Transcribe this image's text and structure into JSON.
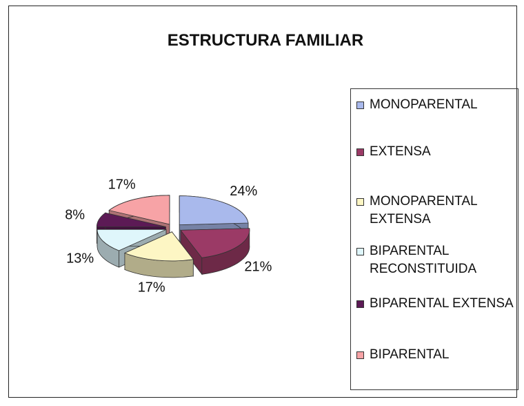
{
  "chart_data": {
    "type": "pie3d",
    "title": "ESTRUCTURA FAMILIAR",
    "categories": [
      "MONOPARENTAL",
      "EXTENSA",
      "MONOPARENTAL EXTENSA",
      "BIPARENTAL RECONSTITUIDA",
      "BIPARENTAL EXTENSA",
      "BIPARENTAL"
    ],
    "values": [
      24,
      21,
      17,
      13,
      8,
      17
    ],
    "value_labels": [
      "24%",
      "21%",
      "17%",
      "13%",
      "8%",
      "17%"
    ],
    "colors": [
      "#a9b9ec",
      "#9b3a66",
      "#fdf6c4",
      "#dff6fb",
      "#5c1a55",
      "#f7a3a6"
    ],
    "legend": "right"
  }
}
